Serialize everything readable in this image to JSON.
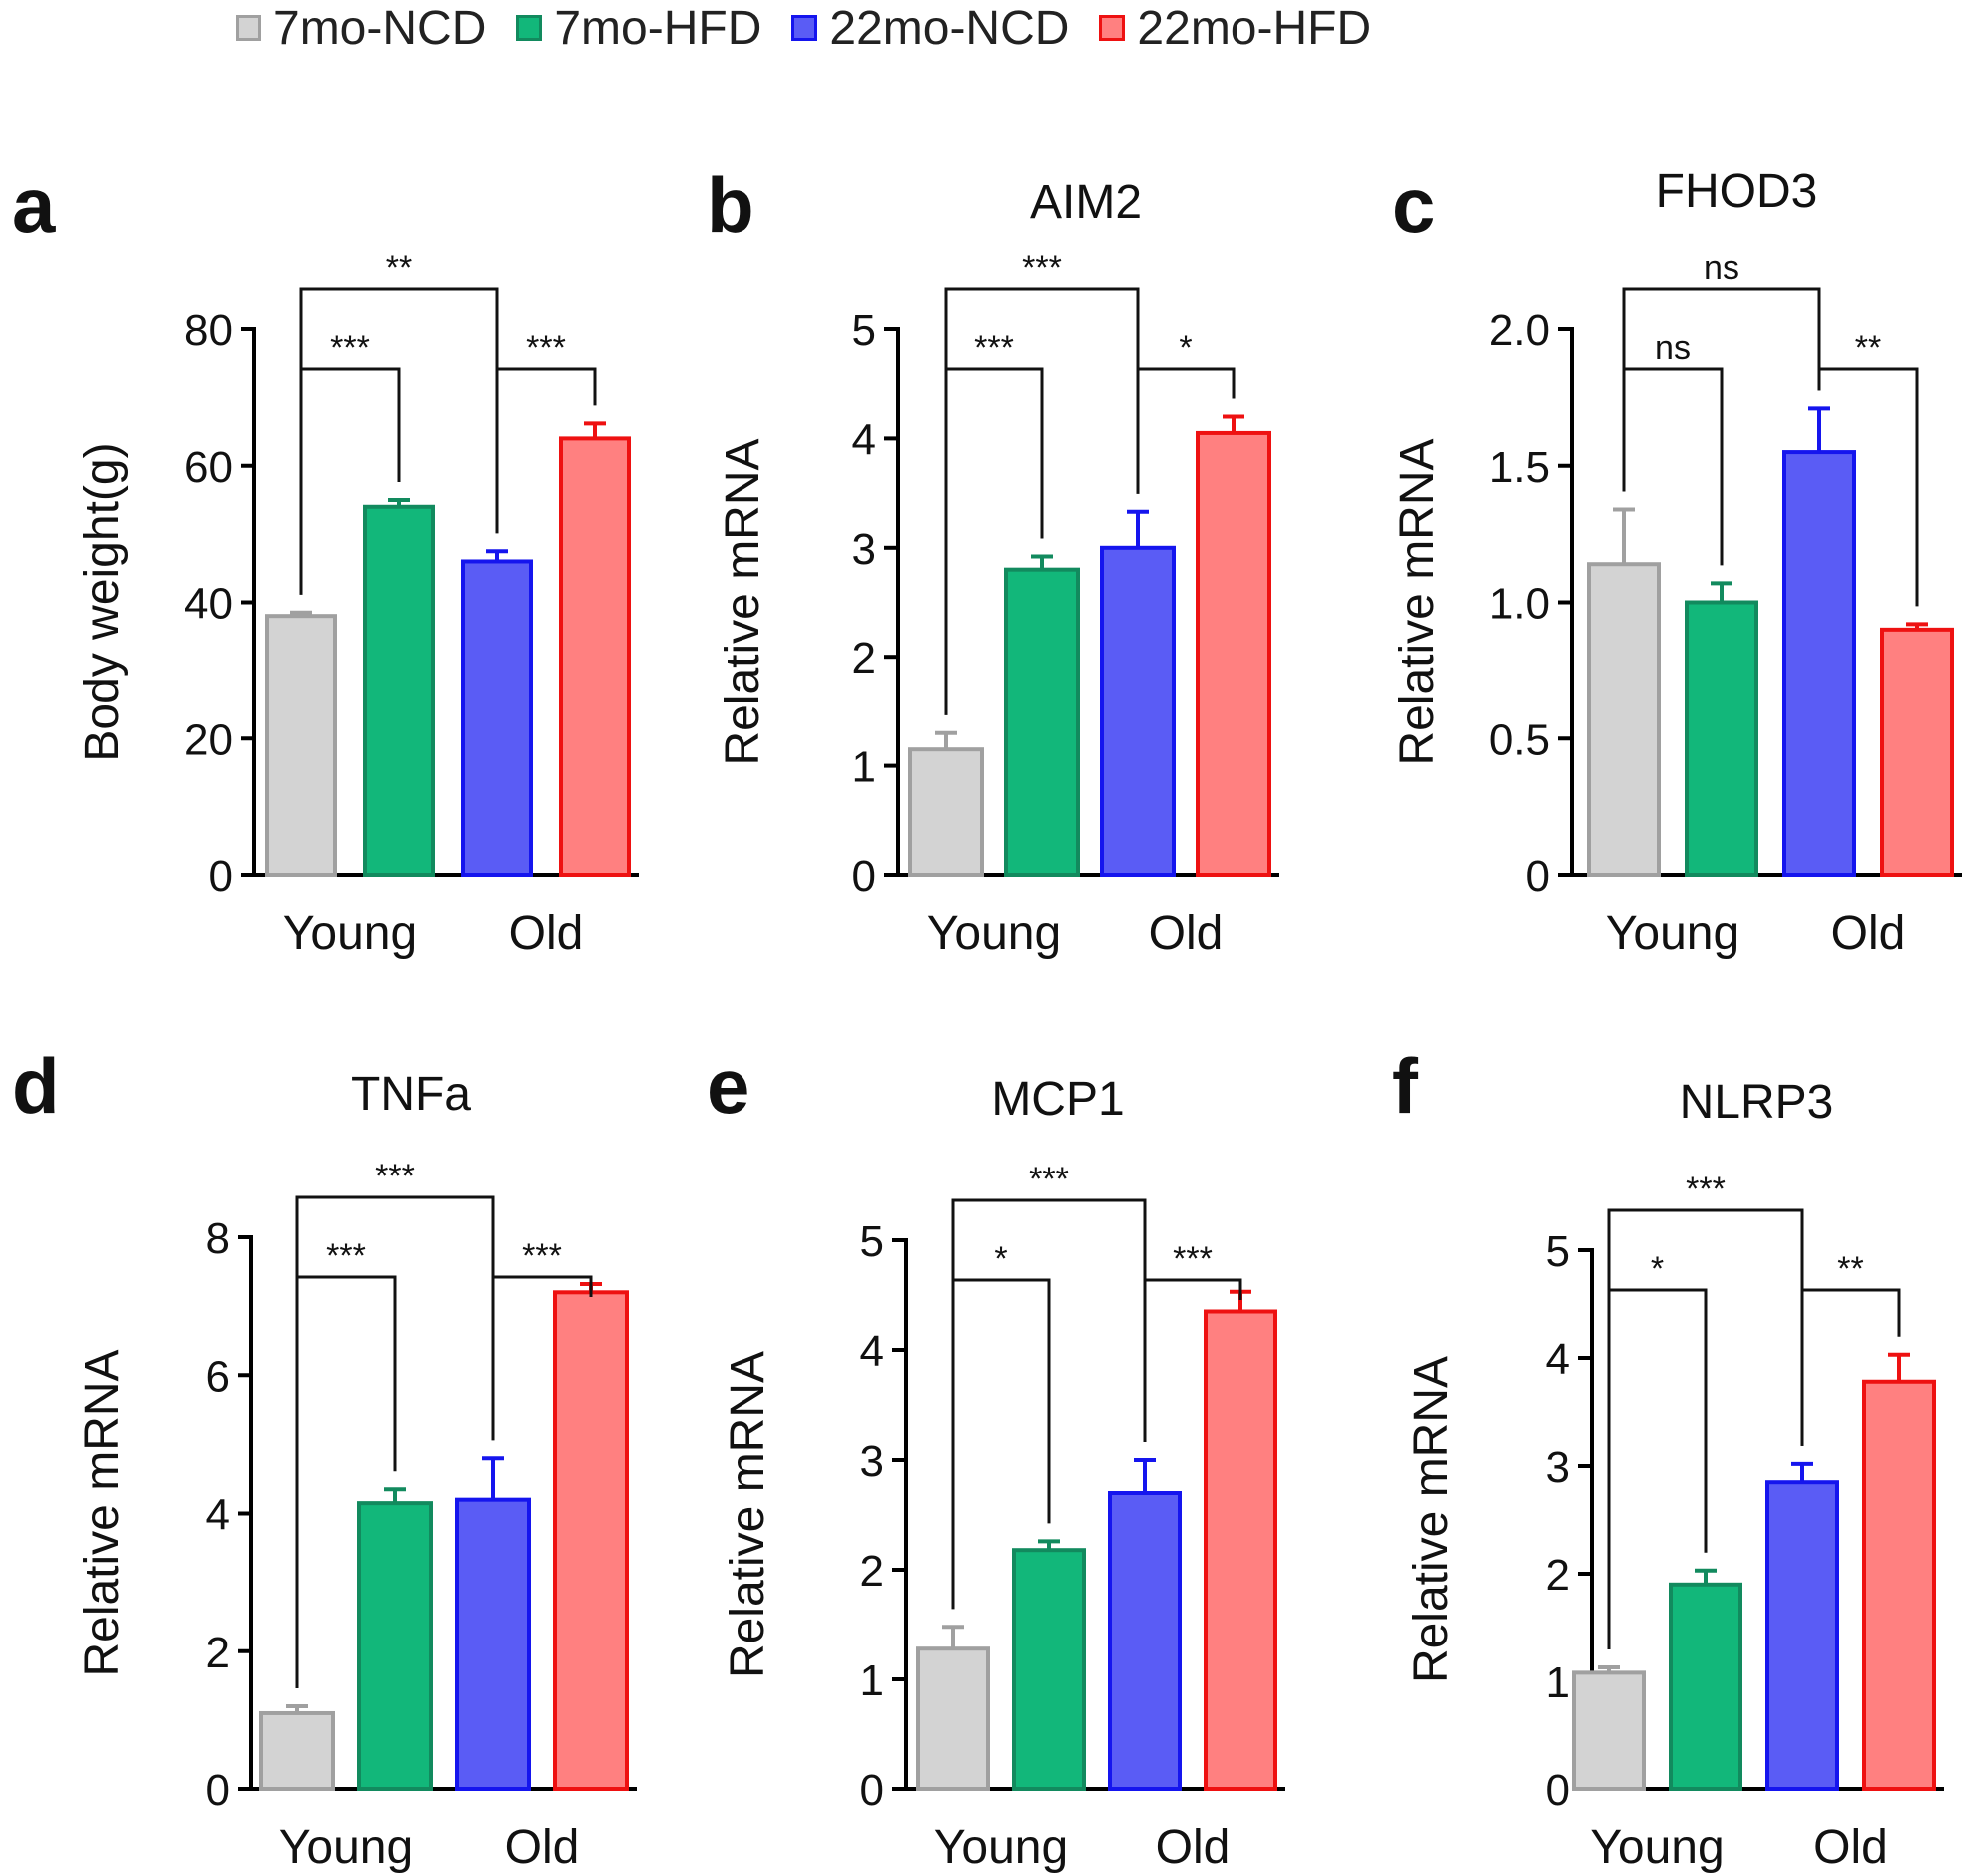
{
  "legend": [
    {
      "label": "7mo-NCD",
      "fill": "#d3d3d3",
      "stroke": "#a0a0a0"
    },
    {
      "label": "7mo-HFD",
      "fill": "#12b77a",
      "stroke": "#128a5e"
    },
    {
      "label": "22mo-NCD",
      "fill": "#5a5cf5",
      "stroke": "#1515ee"
    },
    {
      "label": "22mo-HFD",
      "fill": "#ff8080",
      "stroke": "#ee1111"
    }
  ],
  "chart_data": [
    {
      "panel": "a",
      "type": "bar",
      "title": "",
      "ylabel": "Body weight(g)",
      "ylim": [
        0,
        80
      ],
      "yticks": [
        "0",
        "20",
        "40",
        "60",
        "80"
      ],
      "groups": [
        "Young",
        "Old"
      ],
      "series": [
        "7mo-NCD",
        "7mo-HFD",
        "22mo-NCD",
        "22mo-HFD"
      ],
      "values": [
        38,
        54,
        46,
        64
      ],
      "errors": [
        0.5,
        1,
        1.5,
        2.2
      ],
      "significance": [
        {
          "from": 0,
          "to": 1,
          "label": "***"
        },
        {
          "from": 2,
          "to": 3,
          "label": "***"
        },
        {
          "from": 0,
          "to": 2,
          "label": "**"
        }
      ]
    },
    {
      "panel": "b",
      "type": "bar",
      "title": "AIM2",
      "ylabel": "Relative mRNA",
      "ylim": [
        0,
        5
      ],
      "yticks": [
        "0",
        "1",
        "2",
        "3",
        "4",
        "5"
      ],
      "groups": [
        "Young",
        "Old"
      ],
      "series": [
        "7mo-NCD",
        "7mo-HFD",
        "22mo-NCD",
        "22mo-HFD"
      ],
      "values": [
        1.15,
        2.8,
        3.0,
        4.05
      ],
      "errors": [
        0.15,
        0.12,
        0.33,
        0.15
      ],
      "significance": [
        {
          "from": 0,
          "to": 1,
          "label": "***"
        },
        {
          "from": 2,
          "to": 3,
          "label": "*"
        },
        {
          "from": 0,
          "to": 2,
          "label": "***"
        }
      ]
    },
    {
      "panel": "c",
      "type": "bar",
      "title": "FHOD3",
      "ylabel": "Relative mRNA",
      "ylim": [
        0,
        2.0
      ],
      "yticks": [
        "0",
        "0.5",
        "1.0",
        "1.5",
        "2.0"
      ],
      "groups": [
        "Young",
        "Old"
      ],
      "series": [
        "7mo-NCD",
        "7mo-HFD",
        "22mo-NCD",
        "22mo-HFD"
      ],
      "values": [
        1.14,
        1.0,
        1.55,
        0.9
      ],
      "errors": [
        0.2,
        0.07,
        0.16,
        0.02
      ],
      "significance": [
        {
          "from": 0,
          "to": 1,
          "label": "ns"
        },
        {
          "from": 2,
          "to": 3,
          "label": "**"
        },
        {
          "from": 0,
          "to": 2,
          "label": "ns"
        }
      ]
    },
    {
      "panel": "d",
      "type": "bar",
      "title": "TNFa",
      "ylabel": "Relative mRNA",
      "ylim": [
        0,
        8
      ],
      "yticks": [
        "0",
        "2",
        "4",
        "6",
        "8"
      ],
      "groups": [
        "Young",
        "Old"
      ],
      "series": [
        "7mo-NCD",
        "7mo-HFD",
        "22mo-NCD",
        "22mo-HFD"
      ],
      "values": [
        1.1,
        4.15,
        4.2,
        7.2
      ],
      "errors": [
        0.1,
        0.2,
        0.6,
        0.12
      ],
      "significance": [
        {
          "from": 0,
          "to": 1,
          "label": "***"
        },
        {
          "from": 2,
          "to": 3,
          "label": "***"
        },
        {
          "from": 0,
          "to": 2,
          "label": "***"
        }
      ]
    },
    {
      "panel": "e",
      "type": "bar",
      "title": "MCP1",
      "ylabel": "Relative mRNA",
      "ylim": [
        0,
        5
      ],
      "yticks": [
        "0",
        "1",
        "2",
        "3",
        "4",
        "5"
      ],
      "groups": [
        "Young",
        "Old"
      ],
      "series": [
        "7mo-NCD",
        "7mo-HFD",
        "22mo-NCD",
        "22mo-HFD"
      ],
      "values": [
        1.28,
        2.18,
        2.7,
        4.35
      ],
      "errors": [
        0.2,
        0.08,
        0.3,
        0.18
      ],
      "significance": [
        {
          "from": 0,
          "to": 1,
          "label": "*"
        },
        {
          "from": 2,
          "to": 3,
          "label": "***"
        },
        {
          "from": 0,
          "to": 2,
          "label": "***"
        }
      ]
    },
    {
      "panel": "f",
      "type": "bar",
      "title": "NLRP3",
      "ylabel": "Relative mRNA",
      "ylim": [
        0,
        5
      ],
      "yticks": [
        "0",
        "1",
        "2",
        "3",
        "4",
        "5"
      ],
      "groups": [
        "Young",
        "Old"
      ],
      "series": [
        "7mo-NCD",
        "7mo-HFD",
        "22mo-NCD",
        "22mo-HFD"
      ],
      "values": [
        1.08,
        1.9,
        2.85,
        3.78
      ],
      "errors": [
        0.05,
        0.13,
        0.17,
        0.25
      ],
      "significance": [
        {
          "from": 0,
          "to": 1,
          "label": "*"
        },
        {
          "from": 2,
          "to": 3,
          "label": "**"
        },
        {
          "from": 0,
          "to": 2,
          "label": "***"
        }
      ]
    }
  ]
}
